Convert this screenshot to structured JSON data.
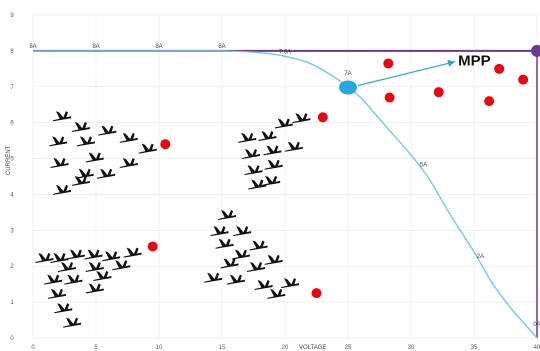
{
  "chart_data": {
    "type": "line",
    "title": "",
    "xlabel": "VOLTAGE",
    "ylabel": "CURRENT",
    "xlim": [
      0,
      40
    ],
    "ylim": [
      0,
      9
    ],
    "x_ticks": [
      "0",
      "5",
      "10",
      "15",
      "20",
      "25",
      "30",
      "35",
      "40"
    ],
    "y_ticks": [
      "0",
      "1",
      "2",
      "3",
      "4",
      "5",
      "6",
      "7",
      "8",
      "9"
    ],
    "grid": true,
    "series": [
      {
        "style": "I-V curve",
        "color": "#7ec3e0",
        "points": [
          [
            0,
            8
          ],
          [
            10,
            8
          ],
          [
            15,
            8
          ],
          [
            18,
            7.95
          ],
          [
            20,
            7.85
          ],
          [
            22,
            7.65
          ],
          [
            24,
            7.25
          ],
          [
            25,
            6.98
          ],
          [
            26,
            6.7
          ],
          [
            28,
            5.9
          ],
          [
            30,
            5.1
          ],
          [
            31.5,
            4.4
          ],
          [
            33,
            3.5
          ],
          [
            35,
            2.4
          ],
          [
            36.5,
            1.5
          ],
          [
            38,
            0.8
          ],
          [
            39,
            0.4
          ],
          [
            40,
            0
          ]
        ],
        "labels": [
          {
            "x": 0,
            "y": 8,
            "text": "8A"
          },
          {
            "x": 5,
            "y": 8,
            "text": "8A"
          },
          {
            "x": 10,
            "y": 8,
            "text": "8A"
          },
          {
            "x": 15,
            "y": 8,
            "text": "8A"
          },
          {
            "x": 20,
            "y": 7.85,
            "text": "7.8A"
          },
          {
            "x": 25,
            "y": 7.25,
            "text": "7A"
          },
          {
            "x": 31,
            "y": 4.7,
            "text": "5A"
          },
          {
            "x": 35.5,
            "y": 2.15,
            "text": "2A"
          },
          {
            "x": 40,
            "y": 0.25,
            "text": "0A"
          }
        ]
      }
    ],
    "reference_lines": {
      "color": "#6b3a8c",
      "horizontal_y": 8,
      "vertical_x": 40
    },
    "mpp": {
      "label": "MPP",
      "x": 25,
      "y": 6.98,
      "marker_color": "#2aa6dc",
      "arrow_to": [
        33.5,
        7.7
      ],
      "arrow_color": "#3aa0c8"
    },
    "red_points": {
      "color": "#e30613",
      "points": [
        [
          10.5,
          5.4
        ],
        [
          9.5,
          2.55
        ],
        [
          23,
          6.15
        ],
        [
          22.5,
          1.25
        ],
        [
          28.2,
          7.65
        ],
        [
          28.3,
          6.7
        ],
        [
          32.2,
          6.85
        ],
        [
          36.2,
          6.6
        ],
        [
          37,
          7.5
        ],
        [
          38.9,
          7.2
        ]
      ]
    },
    "bird_flocks": {
      "color": "#111111",
      "icon": "bird-silhouette",
      "flocks": [
        {
          "birds": [
            [
              2.3,
              6.15
            ],
            [
              3.8,
              5.85
            ],
            [
              5.9,
              5.75
            ],
            [
              2,
              5.45
            ],
            [
              4.2,
              5.45
            ],
            [
              7.6,
              5.55
            ],
            [
              9.1,
              5.25
            ],
            [
              2.1,
              4.85
            ],
            [
              4.9,
              5.0
            ],
            [
              7.6,
              4.85
            ],
            [
              4.1,
              4.55
            ],
            [
              5.8,
              4.55
            ],
            [
              2.3,
              4.1
            ],
            [
              3.8,
              4.35
            ]
          ]
        },
        {
          "birds": [
            [
              17,
              5.55
            ],
            [
              18.6,
              5.6
            ],
            [
              19.9,
              5.95
            ],
            [
              21.3,
              6.1
            ],
            [
              17.3,
              5.1
            ],
            [
              19,
              5.2
            ],
            [
              20.7,
              5.3
            ],
            [
              17.5,
              4.65
            ],
            [
              19.1,
              4.8
            ],
            [
              18.9,
              4.35
            ],
            [
              17.8,
              4.25
            ]
          ]
        },
        {
          "birds": [
            [
              0.9,
              2.2
            ],
            [
              2.1,
              2.2
            ],
            [
              3.4,
              2.3
            ],
            [
              4.8,
              2.3
            ],
            [
              6.2,
              2.25
            ],
            [
              7.9,
              2.35
            ],
            [
              2.7,
              1.95
            ],
            [
              4.9,
              1.95
            ],
            [
              7,
              2.0
            ],
            [
              1.6,
              1.6
            ],
            [
              3.2,
              1.6
            ],
            [
              5.5,
              1.7
            ],
            [
              1.9,
              1.2
            ],
            [
              4.9,
              1.35
            ],
            [
              2.4,
              0.8
            ],
            [
              3.1,
              0.4
            ]
          ]
        },
        {
          "birds": [
            [
              15.4,
              3.4
            ],
            [
              14.8,
              2.95
            ],
            [
              16.6,
              2.95
            ],
            [
              15.2,
              2.6
            ],
            [
              17.9,
              2.55
            ],
            [
              16.5,
              2.3
            ],
            [
              19.1,
              2.15
            ],
            [
              15.6,
              2.05
            ],
            [
              17.7,
              1.95
            ],
            [
              14.3,
              1.65
            ],
            [
              16.1,
              1.6
            ],
            [
              18.3,
              1.45
            ],
            [
              20.4,
              1.5
            ],
            [
              19.3,
              1.2
            ]
          ]
        }
      ]
    }
  }
}
